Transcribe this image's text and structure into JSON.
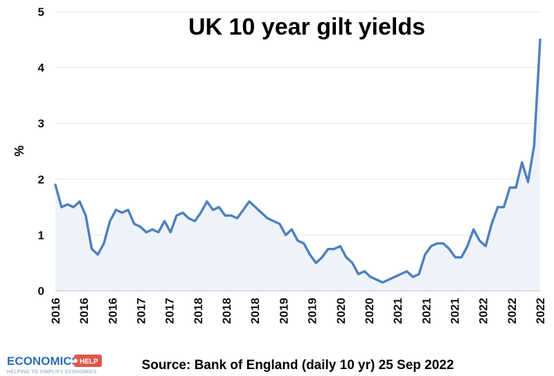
{
  "chart_data": {
    "type": "line",
    "title": "UK 10 year gilt yields",
    "ylabel": "%",
    "ylim": [
      0,
      5
    ],
    "yticks": [
      "0",
      "1",
      "2",
      "3",
      "4",
      "5"
    ],
    "x_tick_labels": [
      "2016",
      "2016",
      "2016",
      "2017",
      "2017",
      "2018",
      "2018",
      "2018",
      "2019",
      "2019",
      "2020",
      "2020",
      "2021",
      "2021",
      "2021",
      "2022",
      "2022",
      "2022"
    ],
    "x_range": [
      "2016-01",
      "2022-09"
    ],
    "grid": "horizontal",
    "series": [
      {
        "color": "#4f81bd",
        "x": [
          "2016-01",
          "2016-02",
          "2016-03",
          "2016-04",
          "2016-05",
          "2016-06",
          "2016-07",
          "2016-08",
          "2016-09",
          "2016-10",
          "2016-11",
          "2016-12",
          "2017-01",
          "2017-02",
          "2017-03",
          "2017-04",
          "2017-05",
          "2017-06",
          "2017-07",
          "2017-08",
          "2017-09",
          "2017-10",
          "2017-11",
          "2017-12",
          "2018-01",
          "2018-02",
          "2018-03",
          "2018-04",
          "2018-05",
          "2018-06",
          "2018-07",
          "2018-08",
          "2018-09",
          "2018-10",
          "2018-11",
          "2018-12",
          "2019-01",
          "2019-02",
          "2019-03",
          "2019-04",
          "2019-05",
          "2019-06",
          "2019-07",
          "2019-08",
          "2019-09",
          "2019-10",
          "2019-11",
          "2019-12",
          "2020-01",
          "2020-02",
          "2020-03",
          "2020-04",
          "2020-05",
          "2020-06",
          "2020-07",
          "2020-08",
          "2020-09",
          "2020-10",
          "2020-11",
          "2020-12",
          "2021-01",
          "2021-02",
          "2021-03",
          "2021-04",
          "2021-05",
          "2021-06",
          "2021-07",
          "2021-08",
          "2021-09",
          "2021-10",
          "2021-11",
          "2021-12",
          "2022-01",
          "2022-02",
          "2022-03",
          "2022-04",
          "2022-05",
          "2022-06",
          "2022-07",
          "2022-08",
          "2022-09"
        ],
        "values": [
          1.9,
          1.5,
          1.55,
          1.5,
          1.6,
          1.35,
          0.75,
          0.65,
          0.85,
          1.25,
          1.45,
          1.4,
          1.45,
          1.2,
          1.15,
          1.05,
          1.1,
          1.05,
          1.25,
          1.05,
          1.35,
          1.4,
          1.3,
          1.25,
          1.4,
          1.6,
          1.45,
          1.5,
          1.35,
          1.35,
          1.3,
          1.45,
          1.6,
          1.5,
          1.4,
          1.3,
          1.25,
          1.2,
          1.0,
          1.1,
          0.9,
          0.85,
          0.65,
          0.5,
          0.6,
          0.75,
          0.75,
          0.8,
          0.6,
          0.5,
          0.3,
          0.35,
          0.25,
          0.2,
          0.15,
          0.2,
          0.25,
          0.3,
          0.35,
          0.25,
          0.3,
          0.65,
          0.8,
          0.85,
          0.85,
          0.75,
          0.6,
          0.6,
          0.8,
          1.1,
          0.9,
          0.8,
          1.2,
          1.5,
          1.5,
          1.85,
          1.85,
          2.3,
          1.95,
          2.6,
          4.5
        ]
      }
    ]
  },
  "source": "Source: Bank of England (daily 10 yr) 25 Sep 2022",
  "logo": {
    "main": "ECONOMICS",
    "badge": "HELP",
    "tagline": "HELPING TO SIMPLIFY ECONOMICS"
  }
}
